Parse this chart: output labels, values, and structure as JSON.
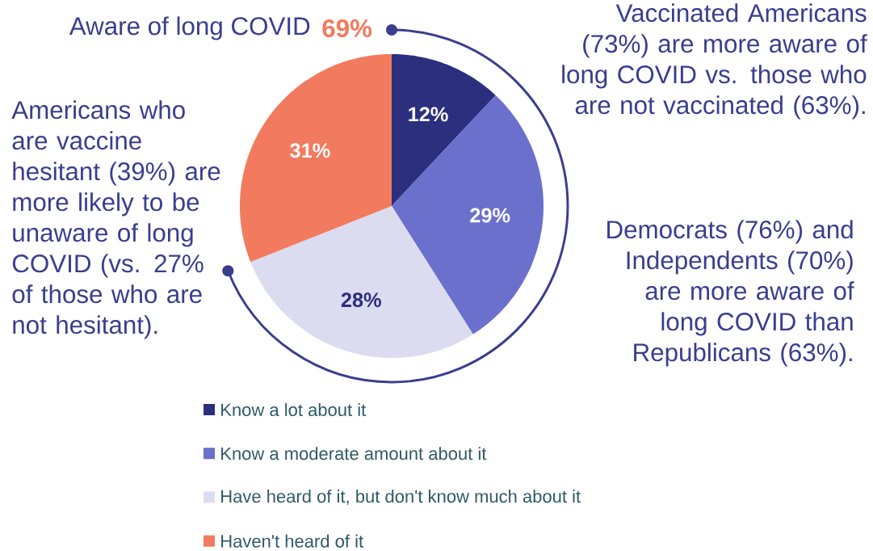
{
  "chart_data": {
    "type": "pie",
    "categories": [
      "Know a lot about it",
      "Know a moderate amount about it",
      "Have heard of it, but don't know much about it",
      "Haven't heard of it"
    ],
    "values": [
      12,
      29,
      28,
      31
    ],
    "colors": [
      "#2b2f7e",
      "#6a70cc",
      "#dcdcf0",
      "#f27a5e"
    ],
    "value_labels": [
      "12%",
      "29%",
      "28%",
      "31%"
    ],
    "legend": "bottom",
    "annotations": [
      "Aware of long COVID",
      "69%",
      "Vaccinated Americans (73%) are more aware of long COVID vs. those who are not vaccinated (63%).",
      "Americans who are vaccine hesitant (39%) are more likely to be unaware of long COVID (vs. 27% of those who are not hesitant).",
      "Democrats (76%) and Independents (70%) are more aware of long COVID than Republicans (63%)."
    ]
  }
}
